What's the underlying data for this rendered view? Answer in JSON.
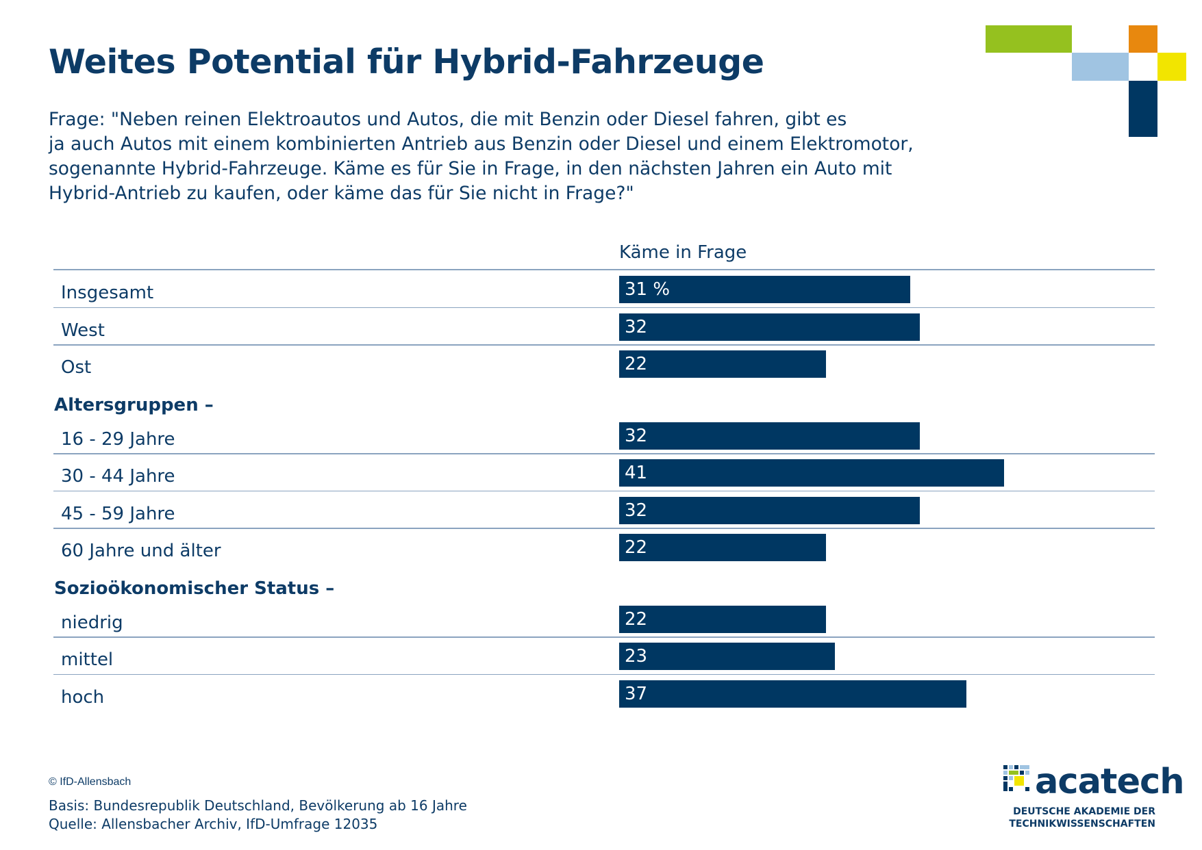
{
  "title": "Weites Potential für Hybrid-Fahrzeuge",
  "question_lines": [
    "Frage: \"Neben reinen Elektroautos und Autos, die mit Benzin oder Diesel fahren, gibt es",
    "ja auch Autos mit einem kombinierten Antrieb aus Benzin oder Diesel und einem Elektromotor,",
    "sogenannte Hybrid-Fahrzeuge. Käme es für Sie in Frage, in den nächsten Jahren ein  Auto mit",
    "Hybrid-Antrieb zu kaufen, oder käme das für Sie nicht in Frage?\""
  ],
  "colors": {
    "bar": "#003762",
    "text": "#0d3b66",
    "rule": "#8aa3bf",
    "deco_green": "#95c11f",
    "deco_orange": "#e8880e",
    "deco_lightblue": "#a0c4e2",
    "deco_yellow": "#f2e500",
    "deco_navy": "#003762"
  },
  "chart_data": {
    "type": "bar",
    "orientation": "horizontal",
    "column_header": "Käme in Frage",
    "unit": "%",
    "xlim": [
      0,
      100
    ],
    "groups": [
      {
        "heading": "",
        "rows": [
          {
            "label": "Insgesamt",
            "value": 31,
            "display": "31 %"
          },
          {
            "label": "West",
            "value": 32,
            "display": "32"
          },
          {
            "label": "Ost",
            "value": 22,
            "display": "22"
          }
        ]
      },
      {
        "heading": "Altersgruppen –",
        "rows": [
          {
            "label": "16 - 29 Jahre",
            "value": 32,
            "display": "32"
          },
          {
            "label": "30 - 44 Jahre",
            "value": 41,
            "display": "41"
          },
          {
            "label": "45 - 59 Jahre",
            "value": 32,
            "display": "32"
          },
          {
            "label": "60 Jahre und älter",
            "value": 22,
            "display": "22"
          }
        ]
      },
      {
        "heading": "Sozioökonomischer Status –",
        "rows": [
          {
            "label": "niedrig",
            "value": 22,
            "display": "22"
          },
          {
            "label": "mittel",
            "value": 23,
            "display": "23"
          },
          {
            "label": "hoch",
            "value": 37,
            "display": "37"
          }
        ]
      }
    ]
  },
  "footer": {
    "copyright": "© IfD-Allensbach",
    "basis": "Basis: Bundesrepublik Deutschland, Bevölkerung ab 16 Jahre",
    "source": "Quelle: Allensbacher Archiv, IfD-Umfrage 12035"
  },
  "brand": {
    "name": "acatech",
    "subtitle_line1": "DEUTSCHE AKADEMIE DER",
    "subtitle_line2": "TECHNIKWISSENSCHAFTEN"
  }
}
